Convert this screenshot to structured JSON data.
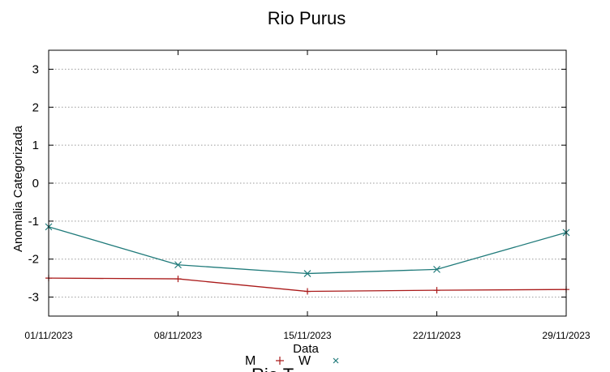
{
  "chart_data": {
    "type": "line",
    "title": "Rio Purus",
    "xlabel": "Data",
    "ylabel": "Anomalia Categorizada",
    "x": [
      "01/11/2023",
      "08/11/2023",
      "15/11/2023",
      "22/11/2023",
      "29/11/2023"
    ],
    "xlim": [
      "01/11/2023",
      "29/11/2023"
    ],
    "ylim": [
      -3.5,
      3.5
    ],
    "yticks": [
      3,
      2,
      1,
      0,
      -1,
      -2,
      -3
    ],
    "grid": "horizontal dotted",
    "series": [
      {
        "name": "",
        "color": "#aa1a1a",
        "marker": "plus",
        "values": [
          -2.5,
          -2.52,
          -2.85,
          -2.82,
          -2.8
        ]
      },
      {
        "name": "",
        "color": "#1f7a7a",
        "marker": "x",
        "values": [
          -1.15,
          -2.15,
          -2.38,
          -2.27,
          -1.3
        ]
      }
    ],
    "legend_fragment": [
      "M",
      "W"
    ],
    "bottom_fragment": "Rio T"
  },
  "colors": {
    "grid": "#9a9a9a",
    "axis": "#000000"
  }
}
